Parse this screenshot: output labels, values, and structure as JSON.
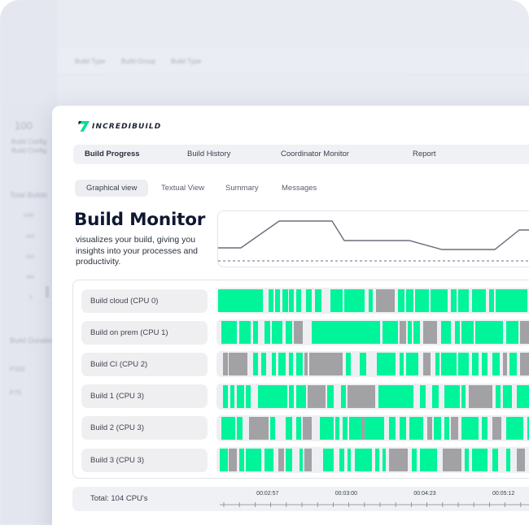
{
  "background": {
    "filters": [
      "Build Type",
      "Build Group",
      "Build Type"
    ],
    "labels": [
      "100",
      "Build Config",
      "Build Config",
      "Total Builds",
      "1000",
      "500",
      "500",
      "500",
      "0",
      "Build Duration",
      "P100",
      "P75"
    ]
  },
  "brand": {
    "logo_text": "INCREDIBUILD",
    "accent": "#00f49a",
    "idle": "#a2a2a5"
  },
  "nav": {
    "tabs": [
      {
        "label": "Build Progress",
        "active": true
      },
      {
        "label": "Build History",
        "active": false
      },
      {
        "label": "Coordinator Monitor",
        "active": false
      },
      {
        "label": "Report",
        "active": false
      }
    ]
  },
  "views": {
    "tabs": [
      {
        "label": "Graphical view",
        "active": true
      },
      {
        "label": "Textual View",
        "active": false
      },
      {
        "label": "Summary",
        "active": false
      },
      {
        "label": "Messages",
        "active": false
      }
    ]
  },
  "hero": {
    "title": "Build Monitor",
    "subtitle": "visualizes your build, giving you insights into your processes and productivity."
  },
  "cpu_graph": {
    "line_points": [
      [
        0,
        45
      ],
      [
        28,
        45
      ],
      [
        75,
        12
      ],
      [
        140,
        12
      ],
      [
        155,
        36
      ],
      [
        235,
        36
      ],
      [
        275,
        47
      ],
      [
        340,
        47
      ],
      [
        370,
        23
      ],
      [
        420,
        23
      ]
    ],
    "baseline": 61
  },
  "processes": [
    {
      "label": "Build cloud (CPU 0)",
      "segments": [
        [
          0.5,
          13,
          "a"
        ],
        [
          15,
          1.5,
          "a"
        ],
        [
          17,
          1.5,
          "a"
        ],
        [
          19.2,
          1.5,
          "a"
        ],
        [
          21,
          1.5,
          "a"
        ],
        [
          23,
          1.5,
          "a"
        ],
        [
          26,
          1.5,
          "a"
        ],
        [
          28.5,
          2,
          "a"
        ],
        [
          33,
          2,
          "a"
        ],
        [
          35,
          1.5,
          "a"
        ],
        [
          37,
          6,
          "a"
        ],
        [
          38.5,
          1,
          "a"
        ],
        [
          40.5,
          1,
          "a"
        ],
        [
          42,
          1,
          "a"
        ],
        [
          44,
          1.2,
          "a"
        ],
        [
          46.2,
          5.5,
          "i"
        ],
        [
          52.5,
          2,
          "a"
        ],
        [
          55,
          2,
          "a"
        ],
        [
          57.5,
          4,
          "a"
        ],
        [
          62,
          5,
          "a"
        ],
        [
          68,
          1.5,
          "a"
        ],
        [
          70,
          3,
          "a"
        ],
        [
          74,
          4,
          "a"
        ],
        [
          79,
          1.5,
          "a"
        ],
        [
          81,
          9,
          "a"
        ],
        [
          91,
          3,
          "a"
        ],
        [
          95,
          6,
          "a"
        ]
      ]
    },
    {
      "label": "Build on prem (CPU 1)",
      "segments": [
        [
          1.5,
          4.5,
          "a"
        ],
        [
          6.5,
          3.5,
          "a"
        ],
        [
          10.5,
          1.5,
          "a"
        ],
        [
          14,
          1.5,
          "a"
        ],
        [
          16,
          3,
          "a"
        ],
        [
          20,
          2,
          "a"
        ],
        [
          22.5,
          2.5,
          "i"
        ],
        [
          27.5,
          20,
          "a"
        ],
        [
          38.5,
          1,
          "a"
        ],
        [
          44,
          1,
          "a"
        ],
        [
          48,
          4.5,
          "a"
        ],
        [
          53,
          2,
          "i"
        ],
        [
          55.5,
          1.2,
          "a"
        ],
        [
          57,
          2,
          "a"
        ],
        [
          60,
          4,
          "i"
        ],
        [
          65,
          3,
          "a"
        ],
        [
          69,
          1.5,
          "a"
        ],
        [
          71,
          3.5,
          "a"
        ],
        [
          75,
          8,
          "a"
        ],
        [
          84,
          3.5,
          "a"
        ],
        [
          88,
          5,
          "i"
        ],
        [
          94,
          7,
          "a"
        ]
      ]
    },
    {
      "label": "Build CI (CPU 2)",
      "segments": [
        [
          2,
          1.2,
          "i"
        ],
        [
          3.5,
          5.5,
          "i"
        ],
        [
          10.5,
          1.5,
          "a"
        ],
        [
          13,
          1.5,
          "a"
        ],
        [
          16,
          1.2,
          "a"
        ],
        [
          18,
          2,
          "a"
        ],
        [
          21,
          1.2,
          "a"
        ],
        [
          23,
          2,
          "a"
        ],
        [
          25.5,
          1,
          "i"
        ],
        [
          27,
          9.5,
          "i"
        ],
        [
          37.5,
          1.5,
          "a"
        ],
        [
          41.5,
          2,
          "a"
        ],
        [
          46.5,
          5.5,
          "a"
        ],
        [
          53,
          1.2,
          "a"
        ],
        [
          55,
          3.5,
          "a"
        ],
        [
          60,
          2,
          "i"
        ],
        [
          63.5,
          1.2,
          "a"
        ],
        [
          65,
          4.5,
          "a"
        ],
        [
          70,
          3,
          "a"
        ],
        [
          74,
          2,
          "a"
        ],
        [
          77,
          1.5,
          "a"
        ],
        [
          80,
          2,
          "a"
        ],
        [
          83,
          1.2,
          "i"
        ],
        [
          85,
          2,
          "a"
        ],
        [
          88,
          8,
          "i"
        ],
        [
          97,
          3,
          "i"
        ]
      ]
    },
    {
      "label": "Build 1 (CPU 3)",
      "segments": [
        [
          2,
          1.2,
          "a"
        ],
        [
          4,
          1.2,
          "a"
        ],
        [
          6,
          2,
          "a"
        ],
        [
          8.5,
          1.5,
          "a"
        ],
        [
          12,
          8.5,
          "a"
        ],
        [
          21,
          1.5,
          "a"
        ],
        [
          23,
          3,
          "a"
        ],
        [
          26.5,
          5,
          "i"
        ],
        [
          32,
          2,
          "a"
        ],
        [
          36,
          1.5,
          "a"
        ],
        [
          38,
          8,
          "i"
        ],
        [
          47,
          10,
          "a"
        ],
        [
          59,
          1.5,
          "a"
        ],
        [
          62.5,
          2,
          "a"
        ],
        [
          66,
          4.5,
          "a"
        ],
        [
          71,
          1.2,
          "a"
        ],
        [
          73,
          7,
          "i"
        ],
        [
          81,
          1.2,
          "a"
        ],
        [
          83,
          2.5,
          "a"
        ],
        [
          87,
          4,
          "a"
        ],
        [
          92,
          3.5,
          "a"
        ],
        [
          96,
          4,
          "i"
        ]
      ]
    },
    {
      "label": "Build 2 (CPU 3)",
      "segments": [
        [
          1.5,
          4,
          "a"
        ],
        [
          6,
          1.5,
          "a"
        ],
        [
          9.5,
          5.5,
          "i"
        ],
        [
          15.5,
          1.5,
          "a"
        ],
        [
          20,
          2,
          "a"
        ],
        [
          23,
          1.5,
          "a"
        ],
        [
          25,
          2.5,
          "i"
        ],
        [
          30,
          4,
          "a"
        ],
        [
          34.5,
          1.2,
          "a"
        ],
        [
          36.5,
          1.5,
          "a"
        ],
        [
          38.5,
          10,
          "a"
        ],
        [
          42,
          1,
          "i"
        ],
        [
          50,
          2,
          "a"
        ],
        [
          53,
          2,
          "a"
        ],
        [
          56,
          4,
          "a"
        ],
        [
          61,
          1.5,
          "i"
        ],
        [
          63,
          2,
          "a"
        ],
        [
          66,
          1.5,
          "a"
        ],
        [
          68,
          2,
          "i"
        ],
        [
          71,
          5,
          "a"
        ],
        [
          77,
          1.5,
          "a"
        ],
        [
          80,
          2.5,
          "i"
        ],
        [
          84,
          5,
          "a"
        ],
        [
          90,
          1.5,
          "a"
        ],
        [
          93,
          7,
          "a"
        ]
      ]
    },
    {
      "label": "Build 3 (CPU 3)",
      "segments": [
        [
          1,
          2.2,
          "a"
        ],
        [
          3.5,
          2.5,
          "i"
        ],
        [
          6.5,
          1.5,
          "a"
        ],
        [
          8.5,
          4.5,
          "a"
        ],
        [
          14,
          2.5,
          "a"
        ],
        [
          18,
          1.5,
          "i"
        ],
        [
          20,
          2,
          "a"
        ],
        [
          24,
          1,
          "a"
        ],
        [
          25.5,
          2,
          "i"
        ],
        [
          31,
          3,
          "a"
        ],
        [
          35.5,
          1.5,
          "a"
        ],
        [
          38,
          1,
          "a"
        ],
        [
          40,
          5,
          "a"
        ],
        [
          46,
          1.2,
          "a"
        ],
        [
          48,
          1,
          "a"
        ],
        [
          50,
          5.5,
          "i"
        ],
        [
          56.5,
          1.5,
          "a"
        ],
        [
          59,
          5,
          "a"
        ],
        [
          65.5,
          5.5,
          "i"
        ],
        [
          72,
          1.2,
          "a"
        ],
        [
          74,
          4.5,
          "a"
        ],
        [
          80,
          1.5,
          "a"
        ],
        [
          84,
          1.2,
          "a"
        ],
        [
          87,
          2.5,
          "i"
        ],
        [
          91,
          1.5,
          "a"
        ],
        [
          94,
          6,
          "i"
        ]
      ]
    }
  ],
  "footer": {
    "total": "Total: 104 CPU's",
    "times": [
      {
        "label": "00:02:57",
        "t": 0.14
      },
      {
        "label": "00:03:00",
        "t": 0.37
      },
      {
        "label": "00:04:23",
        "t": 0.6
      },
      {
        "label": "00:05:12",
        "t": 0.83
      }
    ]
  }
}
